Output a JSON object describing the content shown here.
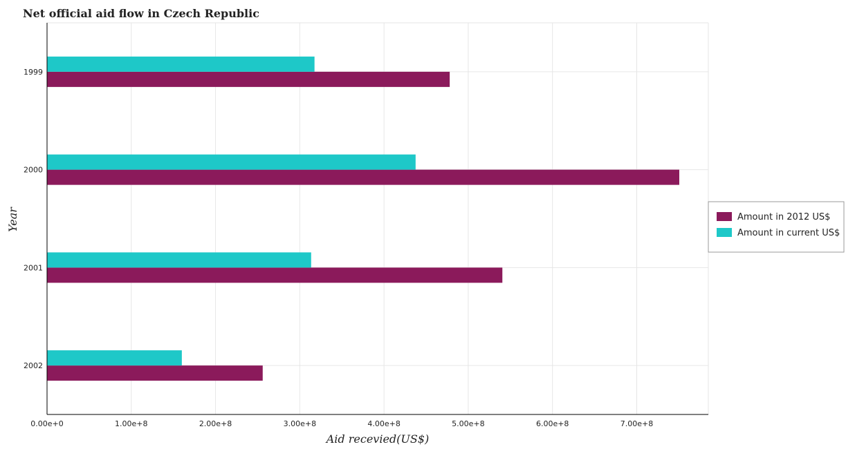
{
  "chart_data": {
    "type": "bar",
    "orientation": "horizontal",
    "title": "Net official aid flow in Czech Republic",
    "xlabel": "Aid recevied(US$)",
    "ylabel": "Year",
    "categories": [
      "1999",
      "2000",
      "2001",
      "2002"
    ],
    "series": [
      {
        "name": "Amount in 2012 US$",
        "color": "#8b1a5b",
        "values": [
          478000000,
          750500000,
          540500000,
          256000000
        ]
      },
      {
        "name": "Amount in current US$",
        "color": "#1ec8c8",
        "values": [
          317500000,
          437500000,
          313500000,
          160000000
        ]
      }
    ],
    "xlim": [
      0,
      785000000
    ],
    "xticks": [
      0,
      100000000,
      200000000,
      300000000,
      400000000,
      500000000,
      600000000,
      700000000
    ],
    "xtick_labels": [
      "0.00e+0",
      "1.00e+8",
      "2.00e+8",
      "3.00e+8",
      "4.00e+8",
      "5.00e+8",
      "6.00e+8",
      "7.00e+8"
    ],
    "grid": true,
    "legend_position": "right"
  }
}
